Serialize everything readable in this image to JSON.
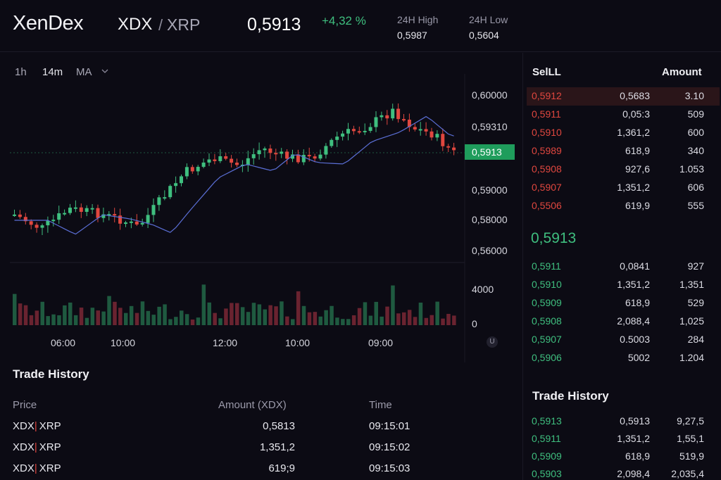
{
  "header": {
    "logo": "XenDex",
    "pair_base": "XDX",
    "pair_sep": "/",
    "pair_quote": "XRP",
    "last_price": "0,5913",
    "change": "+4,32 %",
    "high_label": "24H High",
    "high_value": "0,5987",
    "low_label": "24H Low",
    "low_value": "0,5604"
  },
  "chart": {
    "timeframes": [
      "1h",
      "14m",
      "MA"
    ],
    "price_axis": [
      "0,60000",
      "0,59310",
      "0,59000",
      "0,58000",
      "0,56000"
    ],
    "current_price_tag": "0,5913",
    "volume_axis": [
      "4000",
      "0"
    ],
    "time_axis": [
      "06:00",
      "10:00",
      "12:00",
      "10:00",
      "09:00"
    ],
    "u_button": "U",
    "colors": {
      "up": "#3fbf7f",
      "down": "#e0473f",
      "ma": "#5b6fd6"
    }
  },
  "orderbook": {
    "head_left": "SelLL",
    "head_right": "Amount",
    "asks": [
      {
        "price": "0,5912",
        "amount": "0,5683",
        "total": "3.10"
      },
      {
        "price": "0,5911",
        "amount": "0,05:3",
        "total": "509"
      },
      {
        "price": "0,5910",
        "amount": "1,361,2",
        "total": "600"
      },
      {
        "price": "0,5989",
        "amount": "618,9",
        "total": "340"
      },
      {
        "price": "0,5908",
        "amount": "927,6",
        "total": "1.053"
      },
      {
        "price": "0,5907",
        "amount": "1,351,2",
        "total": "606"
      },
      {
        "price": "0,5506",
        "amount": "619,9",
        "total": "555"
      }
    ],
    "mid_price": "0,5913",
    "bids": [
      {
        "price": "0,5911",
        "amount": "0,0841",
        "total": "927"
      },
      {
        "price": "0,5910",
        "amount": "1,351,2",
        "total": "1,351"
      },
      {
        "price": "0,5909",
        "amount": "618,9",
        "total": "529"
      },
      {
        "price": "0,5908",
        "amount": "2,088,4",
        "total": "1,025"
      },
      {
        "price": "0,5907",
        "amount": "0.5003",
        "total": "284"
      },
      {
        "price": "0,5906",
        "amount": "5002",
        "total": "1.204"
      }
    ]
  },
  "trade_history": {
    "title": "Trade History",
    "col_price": "Price",
    "col_amount": "Amount  (XDX)",
    "col_time": "Time",
    "rows": [
      {
        "base": "XDX",
        "quote": "XRP",
        "amount": "0,5813",
        "time": "09:15:01"
      },
      {
        "base": "XDX",
        "quote": "XRP",
        "amount": "1,351,2",
        "time": "09:15:02"
      },
      {
        "base": "XDX",
        "quote": "XRP",
        "amount": "619;9",
        "time": "09:15:03"
      }
    ]
  },
  "recent_trades": {
    "title": "Trade History",
    "rows": [
      {
        "price": "0,5913",
        "amount": "0,5913",
        "total": "9,27,5"
      },
      {
        "price": "0,5911",
        "amount": "1,351,2",
        "total": "1,55,1"
      },
      {
        "price": "0,5909",
        "amount": "618,9",
        "total": "519,9"
      },
      {
        "price": "0,5903",
        "amount": "2,098,4",
        "total": "2,035,4"
      }
    ]
  }
}
